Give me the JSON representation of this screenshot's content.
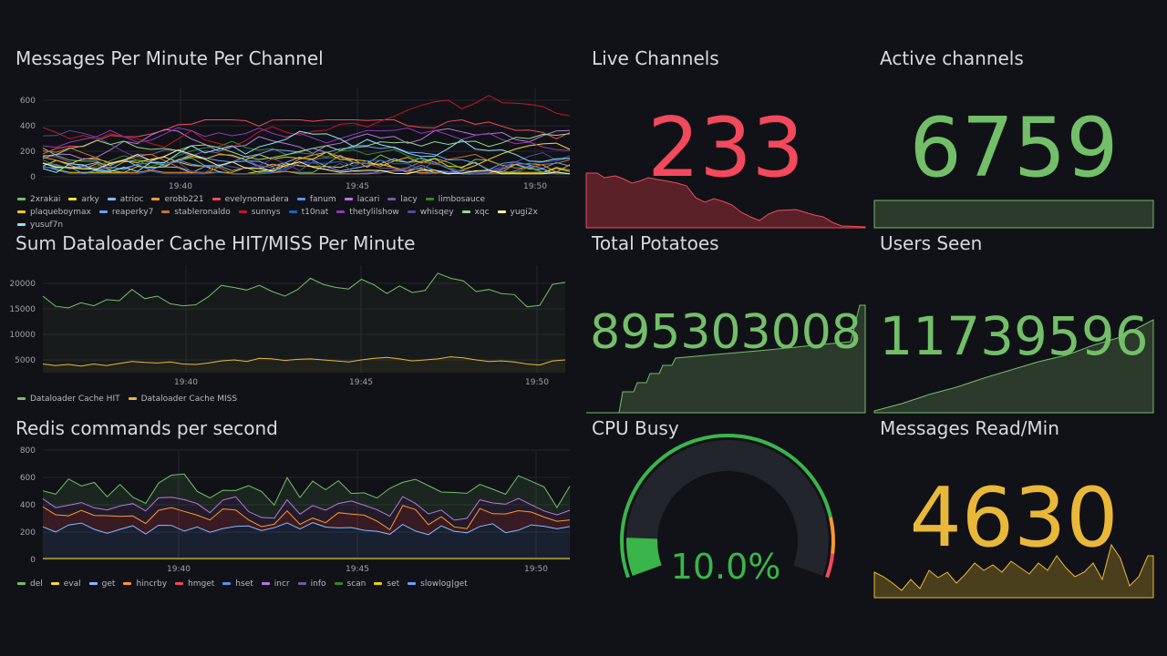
{
  "colors": {
    "red": "#f2495c",
    "green": "#73bf69",
    "yellow": "#fade2a",
    "orange": "#ff9830",
    "gold": "#eab839",
    "blue": "#5794f2",
    "grid": "#24262d",
    "bg": "#111217"
  },
  "messages_panel": {
    "title": "Messages Per Minute Per Channel",
    "x_ticks": [
      "19:40",
      "19:45",
      "19:50"
    ],
    "y_ticks": [
      "600",
      "400",
      "200",
      "0"
    ],
    "legend": [
      {
        "name": "2xrakai",
        "color": "#73bf69"
      },
      {
        "name": "arky",
        "color": "#fade2a"
      },
      {
        "name": "atrioc",
        "color": "#8ab8ff"
      },
      {
        "name": "erobb221",
        "color": "#ff9830"
      },
      {
        "name": "evelynomadera",
        "color": "#f2495c"
      },
      {
        "name": "fanum",
        "color": "#5794f2"
      },
      {
        "name": "lacari",
        "color": "#b877d9"
      },
      {
        "name": "lacy",
        "color": "#705da0"
      },
      {
        "name": "limbosauce",
        "color": "#37872d"
      },
      {
        "name": "plaqueboymax",
        "color": "#f2cc0c"
      },
      {
        "name": "reaperky7",
        "color": "#6e9fff"
      },
      {
        "name": "stableronaldo",
        "color": "#c4742f"
      },
      {
        "name": "sunnys",
        "color": "#c4162a"
      },
      {
        "name": "t10nat",
        "color": "#1f60c4"
      },
      {
        "name": "thetylilshow",
        "color": "#8f3bb8"
      },
      {
        "name": "whisqey",
        "color": "#584992"
      },
      {
        "name": "xqc",
        "color": "#96d98d"
      },
      {
        "name": "yugi2x",
        "color": "#fff899"
      },
      {
        "name": "yusuf7n",
        "color": "#8ae6f2"
      }
    ]
  },
  "cache_panel": {
    "title": "Sum Dataloader Cache HIT/MISS Per Minute",
    "x_ticks": [
      "19:40",
      "19:45",
      "19:50"
    ],
    "y_ticks": [
      "20000",
      "15000",
      "10000",
      "5000"
    ],
    "legend": [
      {
        "name": "Dataloader Cache HIT",
        "color": "#73bf69"
      },
      {
        "name": "Dataloader Cache MISS",
        "color": "#eab839"
      }
    ]
  },
  "redis_panel": {
    "title": "Redis commands per second",
    "x_ticks": [
      "19:40",
      "19:45",
      "19:50"
    ],
    "y_ticks": [
      "800",
      "600",
      "400",
      "200",
      "0"
    ],
    "legend": [
      {
        "name": "del",
        "color": "#73bf69"
      },
      {
        "name": "eval",
        "color": "#fade2a"
      },
      {
        "name": "get",
        "color": "#8ab8ff"
      },
      {
        "name": "hincrby",
        "color": "#ff9830"
      },
      {
        "name": "hmget",
        "color": "#f2495c"
      },
      {
        "name": "hset",
        "color": "#5794f2"
      },
      {
        "name": "incr",
        "color": "#b877d9"
      },
      {
        "name": "info",
        "color": "#705da0"
      },
      {
        "name": "scan",
        "color": "#37872d"
      },
      {
        "name": "set",
        "color": "#f2cc0c"
      },
      {
        "name": "slowlog|get",
        "color": "#6e9fff"
      }
    ]
  },
  "live_channels": {
    "title": "Live Channels",
    "value": "233"
  },
  "active_channels": {
    "title": "Active channels",
    "value": "6759"
  },
  "total_potatoes": {
    "title": "Total Potatoes",
    "value": "895303008"
  },
  "users_seen": {
    "title": "Users Seen",
    "value": "11739596"
  },
  "cpu_busy": {
    "title": "CPU Busy",
    "value": "10.0%",
    "fraction": 0.1
  },
  "messages_read": {
    "title": "Messages Read/Min",
    "value": "4630"
  }
}
